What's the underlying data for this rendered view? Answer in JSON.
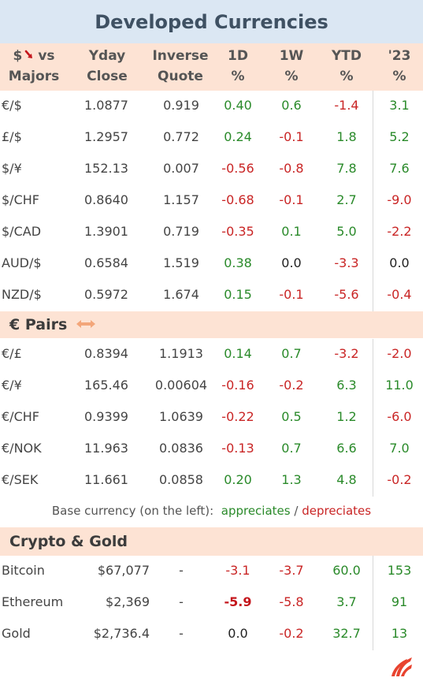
{
  "title": "Developed Currencies",
  "header": {
    "col0_line1_pre": "$",
    "col0_line1_post": "vs",
    "col0_line2": "Majors",
    "col1_line1": "Yday",
    "col1_line2": "Close",
    "col2_line1": "Inverse",
    "col2_line2": "Quote",
    "col3_line1": "1D",
    "col3_line2": "%",
    "col4_line1": "1W",
    "col4_line2": "%",
    "col5_line1": "YTD",
    "col5_line2": "%",
    "col6_line1": "'23",
    "col6_line2": "%"
  },
  "majors": [
    {
      "pair": "€/$",
      "close": "1.0877",
      "inverse": "0.919",
      "d1": "0.40",
      "w1": "0.6",
      "ytd": "-1.4",
      "y23": "3.1"
    },
    {
      "pair": "£/$",
      "close": "1.2957",
      "inverse": "0.772",
      "d1": "0.24",
      "w1": "-0.1",
      "ytd": "1.8",
      "y23": "5.2"
    },
    {
      "pair": "$/¥",
      "close": "152.13",
      "inverse": "0.007",
      "d1": "-0.56",
      "w1": "-0.8",
      "ytd": "7.8",
      "y23": "7.6"
    },
    {
      "pair": "$/CHF",
      "close": "0.8640",
      "inverse": "1.157",
      "d1": "-0.68",
      "w1": "-0.1",
      "ytd": "2.7",
      "y23": "-9.0"
    },
    {
      "pair": "$/CAD",
      "close": "1.3901",
      "inverse": "0.719",
      "d1": "-0.35",
      "w1": "0.1",
      "ytd": "5.0",
      "y23": "-2.2"
    },
    {
      "pair": "AUD/$",
      "close": "0.6584",
      "inverse": "1.519",
      "d1": "0.38",
      "w1": "0.0",
      "ytd": "-3.3",
      "y23": "0.0"
    },
    {
      "pair": "NZD/$",
      "close": "0.5972",
      "inverse": "1.674",
      "d1": "0.15",
      "w1": "-0.1",
      "ytd": "-5.6",
      "y23": "-0.4"
    }
  ],
  "euro_section": "€ Pairs",
  "euro_pairs": [
    {
      "pair": "€/£",
      "close": "0.8394",
      "inverse": "1.1913",
      "d1": "0.14",
      "w1": "0.7",
      "ytd": "-3.2",
      "y23": "-2.0"
    },
    {
      "pair": "€/¥",
      "close": "165.46",
      "inverse": "0.00604",
      "d1": "-0.16",
      "w1": "-0.2",
      "ytd": "6.3",
      "y23": "11.0"
    },
    {
      "pair": "€/CHF",
      "close": "0.9399",
      "inverse": "1.0639",
      "d1": "-0.22",
      "w1": "0.5",
      "ytd": "1.2",
      "y23": "-6.0"
    },
    {
      "pair": "€/NOK",
      "close": "11.963",
      "inverse": "0.0836",
      "d1": "-0.13",
      "w1": "0.7",
      "ytd": "6.6",
      "y23": "7.0"
    },
    {
      "pair": "€/SEK",
      "close": "11.661",
      "inverse": "0.0858",
      "d1": "0.20",
      "w1": "1.3",
      "ytd": "4.8",
      "y23": "-0.2"
    }
  ],
  "legend": {
    "prefix": "Base currency (on the left):",
    "up": "appreciates",
    "sep": "/",
    "down": "depreciates"
  },
  "crypto_section": "Crypto & Gold",
  "crypto": [
    {
      "name": "Bitcoin",
      "close": "$67,077",
      "inverse": "-",
      "d1": "-3.1",
      "w1": "-3.7",
      "ytd": "60.0",
      "y23": "153"
    },
    {
      "name": "Ethereum",
      "close": "$2,369",
      "inverse": "-",
      "d1": "-5.9",
      "w1": "-5.8",
      "ytd": "3.7",
      "y23": "91"
    },
    {
      "name": "Gold",
      "close": "$2,736.4",
      "inverse": "-",
      "d1": "0.0",
      "w1": "-0.2",
      "ytd": "32.7",
      "y23": "13"
    }
  ],
  "colors": {
    "positive": "#2a8a2a",
    "negative": "#c92525",
    "header_bg": "#fde3d4",
    "title_bg": "#dbe7f3"
  },
  "icons": {
    "header_arrow": "down-arrow-icon",
    "euro_arrow": "left-right-arrow-icon",
    "logo": "brand-logo-icon"
  }
}
